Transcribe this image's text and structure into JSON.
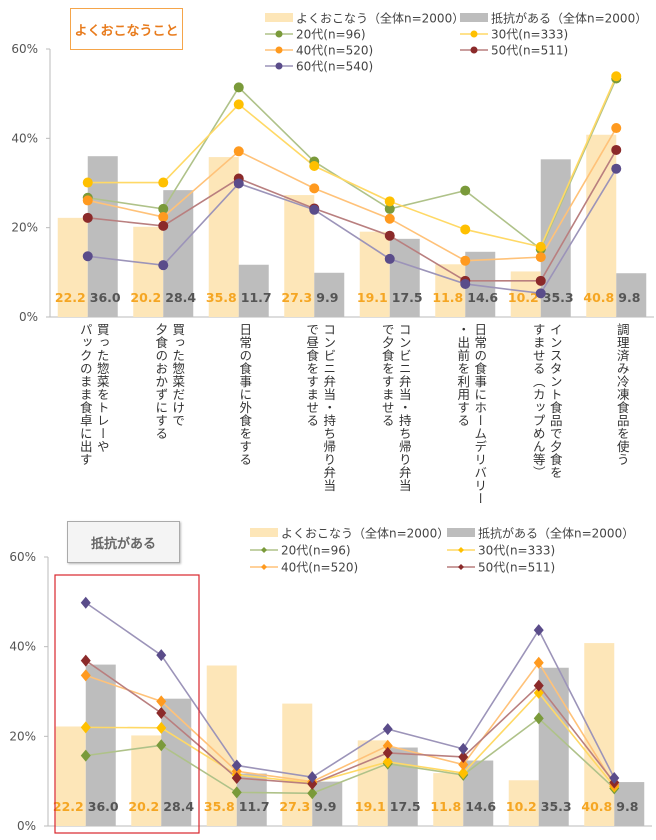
{
  "colors": {
    "bar_often": "#fde6b8",
    "bar_resist": "#bdbdbd",
    "label_often": "#f5a623",
    "label_resist": "#555555",
    "20代": "#7a9a3a",
    "30代": "#ffc000",
    "40代": "#ff9a1f",
    "50代": "#8b2a2a",
    "60代": "#5a4c8a"
  },
  "categories": [
    [
      "買った惣菜をトレーや",
      "パックのまま食卓に出す"
    ],
    [
      "買った惣菜だけで",
      "夕食のおかずにする"
    ],
    [
      "日常の食事に外食をする"
    ],
    [
      "コンビニ弁当・持ち帰り弁当",
      "で昼食をすませる"
    ],
    [
      "コンビニ弁当・持ち帰り弁当",
      "で夕食をすませる"
    ],
    [
      "日常の食事にホームデリバリー",
      "・出前を利用する"
    ],
    [
      "インスタント食品で夕食を",
      "すませる（カップめん等）"
    ],
    [
      "調理済み冷凍食品を使う"
    ]
  ],
  "chart_data": [
    {
      "type": "bar+line",
      "title": "よくおこなうこと",
      "ylim": [
        0,
        60
      ],
      "yticks": [
        "0%",
        "20%",
        "40%",
        "60%"
      ],
      "grid": false,
      "legend": "top-right",
      "marker": "circle",
      "bars": [
        {
          "name": "よくおこなう（全体n=2000）",
          "values": [
            22.2,
            20.2,
            35.8,
            27.3,
            19.1,
            11.8,
            10.2,
            40.8
          ]
        },
        {
          "name": "抵抗がある（全体n=2000）",
          "values": [
            36.0,
            28.4,
            11.7,
            9.9,
            17.5,
            14.6,
            35.3,
            9.8
          ]
        }
      ],
      "series": [
        {
          "key": "20代",
          "name": "20代(n=96)",
          "values": [
            26.7,
            24.2,
            51.4,
            34.8,
            24.2,
            28.3,
            15.2,
            53.4
          ]
        },
        {
          "key": "30代",
          "name": "30代(n=333)",
          "values": [
            30.1,
            30.1,
            47.6,
            33.8,
            25.9,
            19.6,
            15.7,
            53.9
          ]
        },
        {
          "key": "40代",
          "name": "40代(n=520)",
          "values": [
            26.1,
            22.4,
            37.1,
            28.8,
            22.0,
            12.6,
            13.4,
            42.3
          ]
        },
        {
          "key": "50代",
          "name": "50代(n=511)",
          "values": [
            22.2,
            20.4,
            31.0,
            24.3,
            18.2,
            8.1,
            8.1,
            37.4
          ]
        },
        {
          "key": "60代",
          "name": "60代(n=540)",
          "values": [
            13.6,
            11.6,
            29.9,
            24.0,
            13.0,
            7.4,
            5.3,
            33.2
          ]
        }
      ]
    },
    {
      "type": "bar+line",
      "title": "抵抗がある",
      "ylim": [
        0,
        60
      ],
      "yticks": [
        "0%",
        "20%",
        "40%",
        "60%"
      ],
      "grid": false,
      "legend": "top-right",
      "marker": "diamond",
      "highlight_categories": [
        0,
        1
      ],
      "bars": [
        {
          "name": "よくおこなう（全体n=2000）",
          "values": [
            22.2,
            20.2,
            35.8,
            27.3,
            19.1,
            11.8,
            10.2,
            40.8
          ]
        },
        {
          "name": "抵抗がある（全体n=2000）",
          "values": [
            36.0,
            28.4,
            11.7,
            9.9,
            17.5,
            14.6,
            35.3,
            9.8
          ]
        }
      ],
      "series": [
        {
          "key": "20代",
          "name": "20代(n=96)",
          "values": [
            15.7,
            18.0,
            7.5,
            7.3,
            13.9,
            11.4,
            24.0,
            8.4
          ]
        },
        {
          "key": "30代",
          "name": "30代(n=333)",
          "values": [
            22.0,
            21.9,
            11.4,
            9.6,
            14.3,
            11.8,
            29.7,
            8.8
          ]
        },
        {
          "key": "40代",
          "name": "40代(n=520)",
          "values": [
            33.6,
            27.8,
            12.2,
            9.9,
            17.9,
            13.7,
            36.4,
            9.2
          ]
        },
        {
          "key": "50代",
          "name": "50代(n=511)",
          "values": [
            36.9,
            25.2,
            10.7,
            9.4,
            16.3,
            15.4,
            31.3,
            9.7
          ]
        },
        {
          "key": "60代",
          "values": [
            49.8,
            38.1,
            13.5,
            10.9,
            21.6,
            17.2,
            43.7,
            10.7
          ]
        }
      ]
    }
  ]
}
